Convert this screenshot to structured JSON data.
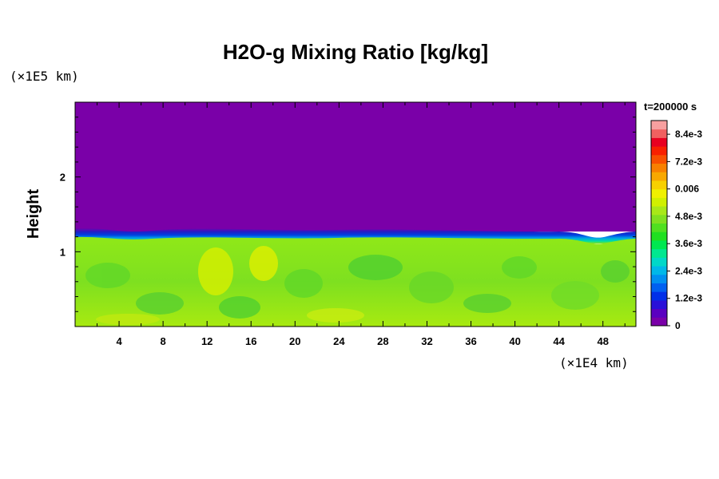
{
  "chart_data": {
    "type": "heatmap",
    "title": "H2O-g Mixing Ratio [kg/kg]",
    "ylabel": "Height",
    "xlabel": "",
    "y_unit_label": "(×1E5 km)",
    "x_unit_label": "(×1E4 km)",
    "time_label": "t=200000 s",
    "x_range": [
      0,
      51
    ],
    "y_range": [
      0,
      3
    ],
    "x_ticks": [
      4,
      8,
      12,
      16,
      20,
      24,
      28,
      32,
      36,
      40,
      44,
      48
    ],
    "y_ticks": [
      1,
      2
    ],
    "colorbar": {
      "min": 0,
      "max": 0.009,
      "tick_values": [
        0,
        0.0012,
        0.0024,
        0.0036,
        0.0048,
        0.006,
        0.0072,
        0.0084
      ],
      "tick_labels": [
        "0",
        "1.2e-3",
        "2.4e-3",
        "3.6e-3",
        "4.8e-3",
        "0.006",
        "7.2e-3",
        "8.4e-3"
      ],
      "colors": [
        "#7a00a8",
        "#5a00c0",
        "#2a10d8",
        "#0030e8",
        "#0060f0",
        "#0090f0",
        "#00b8e8",
        "#00d8c8",
        "#00e890",
        "#00e850",
        "#20e020",
        "#50e020",
        "#80e020",
        "#a8e818",
        "#d0f000",
        "#f0f000",
        "#f8d000",
        "#f8a800",
        "#f88000",
        "#f85000",
        "#f82000",
        "#e80020",
        "#f06060",
        "#f8a0a0"
      ]
    },
    "layers": {
      "upper_value": 0,
      "boundary_height": 1.2,
      "lower_value": 0.0055
    }
  }
}
